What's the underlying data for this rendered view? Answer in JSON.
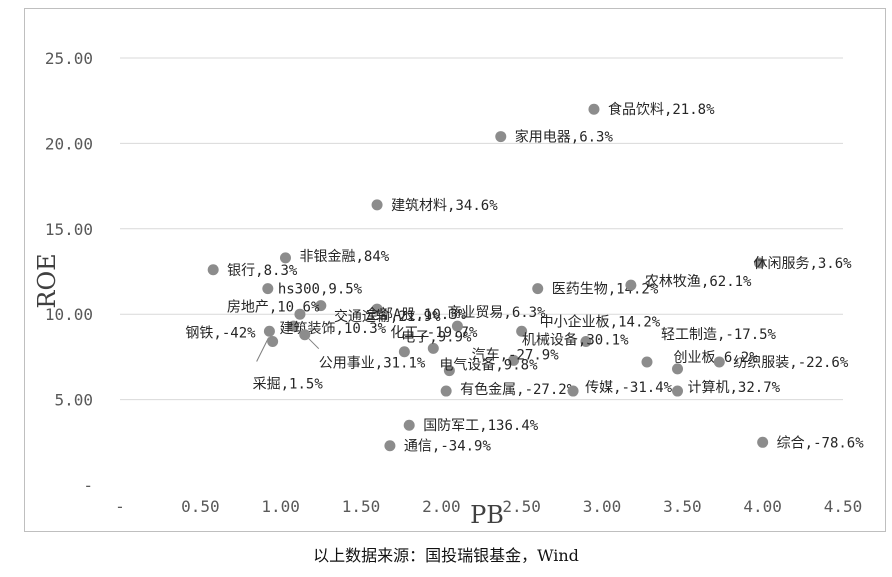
{
  "caption": "以上数据来源：国投瑞银基金，Wind",
  "chart_data": {
    "type": "scatter",
    "xlabel": "PB",
    "ylabel": "ROE",
    "xlim": [
      0,
      4.5
    ],
    "ylim": [
      0,
      25
    ],
    "x_ticks": [
      "-",
      "0.50",
      "1.00",
      "1.50",
      "2.00",
      "2.50",
      "3.00",
      "3.50",
      "4.00",
      "4.50"
    ],
    "y_ticks": [
      "-",
      "5.00",
      "10.00",
      "15.00",
      "20.00",
      "25.00"
    ],
    "grid": "horizontal",
    "point_color": "#8c8c8c",
    "points": [
      {
        "label": "食品饮料,21.8%",
        "x": 2.95,
        "y": 22.0
      },
      {
        "label": "家用电器,6.3%",
        "x": 2.37,
        "y": 20.4
      },
      {
        "label": "建筑材料,34.6%",
        "x": 1.6,
        "y": 16.4
      },
      {
        "label": "非银金融,84%",
        "x": 1.03,
        "y": 13.3
      },
      {
        "label": "银行,8.3%",
        "x": 0.58,
        "y": 12.6
      },
      {
        "label": "hs300,9.5%",
        "x": 0.92,
        "y": 11.5
      },
      {
        "label": "全部A股,10.3%",
        "x": 1.6,
        "y": 10.3
      },
      {
        "label": "房地产,10.6%",
        "x": 1.25,
        "y": 10.5
      },
      {
        "label": "交通运输,21.9%",
        "x": 1.12,
        "y": 10.0
      },
      {
        "label": "建筑装饰,10.3%",
        "x": 1.08,
        "y": 9.3
      },
      {
        "label": "钢铁,-42%",
        "x": 0.93,
        "y": 9.0
      },
      {
        "label": "公用事业,31.1%",
        "x": 1.15,
        "y": 8.8
      },
      {
        "label": "采掘,1.5%",
        "x": 0.95,
        "y": 8.4
      },
      {
        "label": "化工,-19.7%",
        "x": 1.77,
        "y": 7.8
      },
      {
        "label": "商业贸易,6.3%",
        "x": 2.1,
        "y": 9.3
      },
      {
        "label": "中小企业板,14.2%",
        "x": 2.5,
        "y": 9.0
      },
      {
        "label": "电子,9.9%",
        "x": 1.95,
        "y": 8.0
      },
      {
        "label": "汽车,-27.9%",
        "x": 2.45,
        "y": 7.3
      },
      {
        "label": "电气设备,9.8%",
        "x": 2.05,
        "y": 6.7
      },
      {
        "label": "机械设备,30.1%",
        "x": 2.9,
        "y": 8.4
      },
      {
        "label": "医药生物,14.2%",
        "x": 2.6,
        "y": 11.5
      },
      {
        "label": "农林牧渔,62.1%",
        "x": 3.18,
        "y": 11.7
      },
      {
        "label": "休闲服务,3.6%",
        "x": 3.98,
        "y": 13.0
      },
      {
        "label": "轻工制造,-17.5%",
        "x": 3.28,
        "y": 7.2
      },
      {
        "label": "创业板,6.2%",
        "x": 3.47,
        "y": 6.8
      },
      {
        "label": "纺织服装,-22.6%",
        "x": 3.73,
        "y": 7.2
      },
      {
        "label": "有色金属,-27.2%",
        "x": 2.03,
        "y": 5.5
      },
      {
        "label": "传媒,-31.4%",
        "x": 2.82,
        "y": 5.5
      },
      {
        "label": "计算机,32.7%",
        "x": 3.47,
        "y": 5.5
      },
      {
        "label": "国防军工,136.4%",
        "x": 1.8,
        "y": 3.5
      },
      {
        "label": "通信,-34.9%",
        "x": 1.68,
        "y": 2.3
      },
      {
        "label": "综合,-78.6%",
        "x": 4.0,
        "y": 2.5
      }
    ]
  }
}
